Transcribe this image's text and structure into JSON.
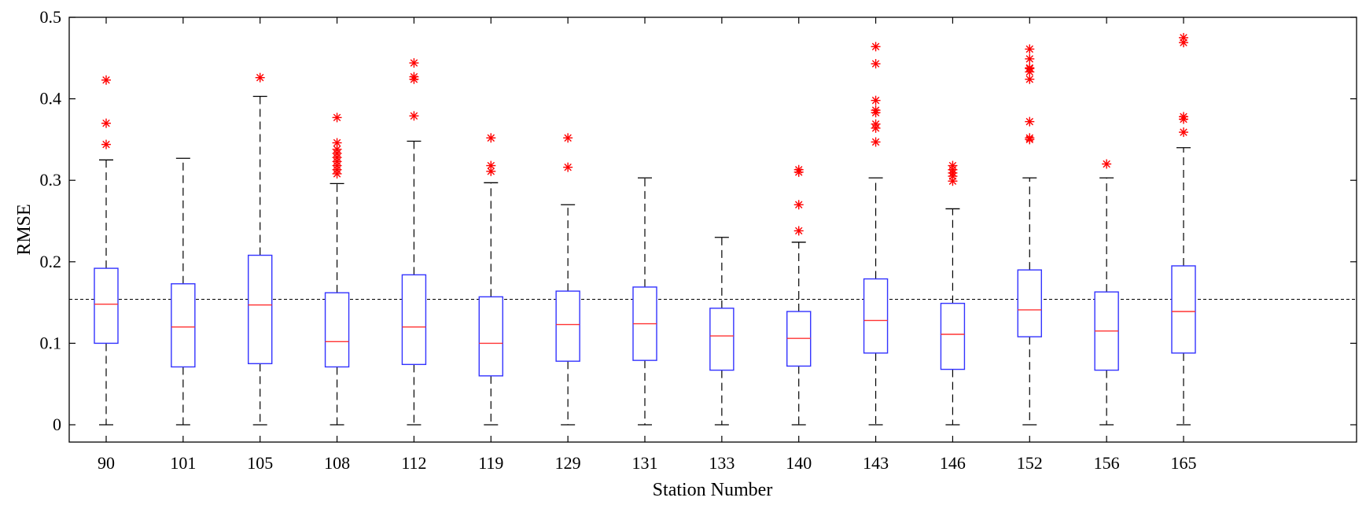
{
  "chart_data": {
    "type": "box",
    "title": "",
    "xlabel": "Station Number",
    "ylabel": "RMSE",
    "ylim": [
      0,
      0.5
    ],
    "yticks": [
      0,
      0.1,
      0.2,
      0.3,
      0.4,
      0.5
    ],
    "ytick_labels": [
      "0",
      "0.1",
      "0.2",
      "0.3",
      "0.4",
      "0.5"
    ],
    "grid": false,
    "reference_line": 0.154,
    "categories": [
      "90",
      "101",
      "105",
      "108",
      "112",
      "119",
      "129",
      "131",
      "133",
      "140",
      "143",
      "146",
      "152",
      "156",
      "165"
    ],
    "boxes": [
      {
        "station": "90",
        "whisker_low": 0,
        "q1": 0.1,
        "median": 0.148,
        "q3": 0.192,
        "whisker_high": 0.325,
        "outliers": [
          0.344,
          0.37,
          0.423
        ]
      },
      {
        "station": "101",
        "whisker_low": 0,
        "q1": 0.071,
        "median": 0.12,
        "q3": 0.173,
        "whisker_high": 0.327,
        "outliers": []
      },
      {
        "station": "105",
        "whisker_low": 0,
        "q1": 0.075,
        "median": 0.147,
        "q3": 0.208,
        "whisker_high": 0.403,
        "outliers": [
          0.426
        ]
      },
      {
        "station": "108",
        "whisker_low": 0,
        "q1": 0.071,
        "median": 0.102,
        "q3": 0.162,
        "whisker_high": 0.296,
        "outliers": [
          0.308,
          0.313,
          0.318,
          0.323,
          0.328,
          0.333,
          0.338,
          0.346,
          0.377
        ]
      },
      {
        "station": "112",
        "whisker_low": 0,
        "q1": 0.074,
        "median": 0.12,
        "q3": 0.184,
        "whisker_high": 0.348,
        "outliers": [
          0.379,
          0.424,
          0.427,
          0.444
        ]
      },
      {
        "station": "119",
        "whisker_low": 0,
        "q1": 0.06,
        "median": 0.1,
        "q3": 0.157,
        "whisker_high": 0.297,
        "outliers": [
          0.311,
          0.318,
          0.352
        ]
      },
      {
        "station": "129",
        "whisker_low": 0,
        "q1": 0.078,
        "median": 0.123,
        "q3": 0.164,
        "whisker_high": 0.27,
        "outliers": [
          0.316,
          0.352
        ]
      },
      {
        "station": "131",
        "whisker_low": 0,
        "q1": 0.079,
        "median": 0.124,
        "q3": 0.169,
        "whisker_high": 0.303,
        "outliers": []
      },
      {
        "station": "133",
        "whisker_low": 0,
        "q1": 0.067,
        "median": 0.109,
        "q3": 0.143,
        "whisker_high": 0.23,
        "outliers": []
      },
      {
        "station": "140",
        "whisker_low": 0,
        "q1": 0.072,
        "median": 0.106,
        "q3": 0.139,
        "whisker_high": 0.224,
        "outliers": [
          0.238,
          0.27,
          0.31,
          0.313
        ]
      },
      {
        "station": "143",
        "whisker_low": 0,
        "q1": 0.088,
        "median": 0.128,
        "q3": 0.179,
        "whisker_high": 0.303,
        "outliers": [
          0.347,
          0.364,
          0.369,
          0.383,
          0.386,
          0.398,
          0.443,
          0.464
        ]
      },
      {
        "station": "146",
        "whisker_low": 0,
        "q1": 0.068,
        "median": 0.111,
        "q3": 0.149,
        "whisker_high": 0.265,
        "outliers": [
          0.299,
          0.305,
          0.309,
          0.313,
          0.318
        ]
      },
      {
        "station": "152",
        "whisker_low": 0,
        "q1": 0.108,
        "median": 0.141,
        "q3": 0.19,
        "whisker_high": 0.303,
        "outliers": [
          0.35,
          0.352,
          0.372,
          0.424,
          0.433,
          0.437,
          0.438,
          0.449,
          0.461
        ]
      },
      {
        "station": "156",
        "whisker_low": 0,
        "q1": 0.067,
        "median": 0.115,
        "q3": 0.163,
        "whisker_high": 0.303,
        "outliers": [
          0.32
        ]
      },
      {
        "station": "165",
        "whisker_low": 0,
        "q1": 0.088,
        "median": 0.139,
        "q3": 0.195,
        "whisker_high": 0.34,
        "outliers": [
          0.359,
          0.375,
          0.378,
          0.469,
          0.475
        ]
      }
    ],
    "colors": {
      "box": "#3333ff",
      "median": "#ff3333",
      "whisker": "#000000",
      "outlier": "#ff0000",
      "reference_line": "#000000"
    }
  }
}
